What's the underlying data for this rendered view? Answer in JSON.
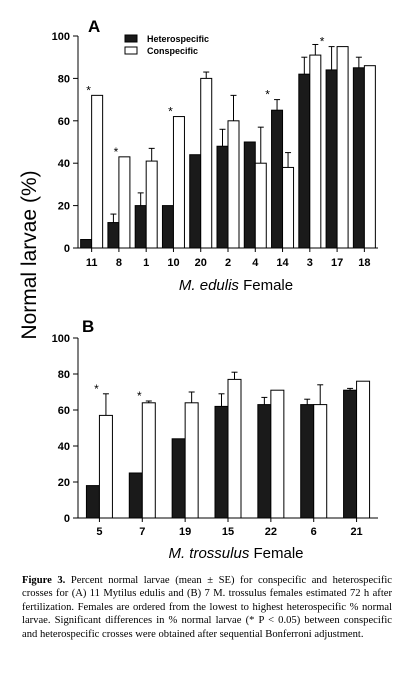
{
  "chart_data": [
    {
      "type": "bar",
      "panel_label": "A",
      "categories": [
        "11",
        "8",
        "1",
        "10",
        "20",
        "2",
        "4",
        "14",
        "3",
        "17",
        "18"
      ],
      "series": [
        {
          "name": "Heterospecific",
          "color": "#1a1a1a",
          "values": [
            4,
            12,
            20,
            20,
            44,
            48,
            50,
            65,
            82,
            84,
            85
          ],
          "errors": [
            0,
            4,
            6,
            0,
            0,
            8,
            0,
            5,
            8,
            11,
            5
          ]
        },
        {
          "name": "Conspecific",
          "color": "#ffffff",
          "values": [
            72,
            43,
            41,
            62,
            80,
            60,
            40,
            38,
            91,
            95,
            86
          ],
          "errors": [
            0,
            0,
            6,
            0,
            3,
            12,
            17,
            7,
            5,
            0,
            0
          ]
        }
      ],
      "significant": [
        "11",
        "8",
        "10",
        "14",
        "17"
      ],
      "ylim": [
        0,
        100
      ],
      "yticks": [
        0,
        20,
        40,
        60,
        80,
        100
      ],
      "xlabel": {
        "italic": "M. edulis",
        "plain": " Female"
      },
      "legend_position": "top-left"
    },
    {
      "type": "bar",
      "panel_label": "B",
      "categories": [
        "5",
        "7",
        "19",
        "15",
        "22",
        "6",
        "21"
      ],
      "series": [
        {
          "name": "Heterospecific",
          "color": "#1a1a1a",
          "values": [
            18,
            25,
            44,
            62,
            63,
            63,
            71
          ],
          "errors": [
            0,
            0,
            0,
            7,
            4,
            3,
            1
          ]
        },
        {
          "name": "Conspecific",
          "color": "#ffffff",
          "values": [
            57,
            64,
            64,
            77,
            71,
            63,
            76
          ],
          "errors": [
            12,
            1,
            6,
            4,
            0,
            11,
            0
          ]
        }
      ],
      "significant": [
        "5",
        "7"
      ],
      "ylim": [
        0,
        100
      ],
      "yticks": [
        0,
        20,
        40,
        60,
        80,
        100
      ],
      "xlabel": {
        "italic": "M. trossulus",
        "plain": " Female"
      }
    }
  ],
  "ylabel": "Normal larvae (%)",
  "significance_marker": "*",
  "caption": {
    "bold": "Figure 3.",
    "text": "   Percent normal larvae (mean ± SE) for conspecific and heterospecific crosses for (A) 11 Mytilus edulis and (B) 7 M. trossulus females estimated 72 h after fertilization. Females are ordered from the lowest to highest heterospecific % normal larvae. Significant differences in % normal larvae (* P < 0.05) between conspecific and heterospecific crosses were obtained after sequential Bonferroni adjustment."
  }
}
